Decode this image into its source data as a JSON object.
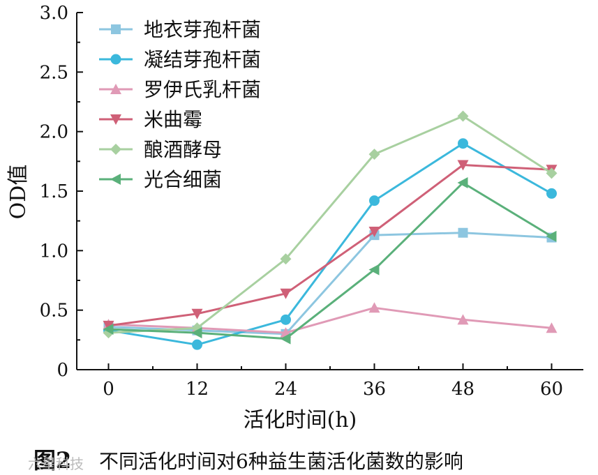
{
  "chart_data": {
    "type": "line",
    "xlabel": "活化时间(h)",
    "ylabel": "OD值",
    "x": [
      0,
      12,
      24,
      36,
      48,
      60
    ],
    "xlim": [
      -4.3,
      64.3
    ],
    "ylim": [
      0,
      3.0
    ],
    "yticks": [
      0,
      0.5,
      1.0,
      1.5,
      2.0,
      2.5,
      3.0
    ],
    "ytick_labels": [
      "0",
      "0.5",
      "1.0",
      "1.5",
      "2.0",
      "2.5",
      "3.0"
    ],
    "xtick_labels": [
      "0",
      "12",
      "24",
      "36",
      "48",
      "60"
    ],
    "legend_position": "top-left",
    "grid": false,
    "series": [
      {
        "name": "地衣芽孢杆菌",
        "color": "#8dc6e0",
        "marker": "square",
        "values": [
          0.36,
          0.33,
          0.3,
          1.13,
          1.15,
          1.11
        ]
      },
      {
        "name": "凝结芽孢杆菌",
        "color": "#3bb8dc",
        "marker": "circle",
        "values": [
          0.33,
          0.21,
          0.42,
          1.42,
          1.9,
          1.48
        ]
      },
      {
        "name": "罗伊氏乳杆菌",
        "color": "#e09ab6",
        "marker": "triangle-up",
        "values": [
          0.38,
          0.35,
          0.31,
          0.52,
          0.42,
          0.35
        ]
      },
      {
        "name": "米曲霉",
        "color": "#cf6077",
        "marker": "triangle-down",
        "values": [
          0.37,
          0.47,
          0.64,
          1.16,
          1.72,
          1.68
        ]
      },
      {
        "name": "酿酒酵母",
        "color": "#a8d0a0",
        "marker": "diamond",
        "values": [
          0.31,
          0.35,
          0.93,
          1.81,
          2.13,
          1.65
        ]
      },
      {
        "name": "光合细菌",
        "color": "#5ab07a",
        "marker": "triangle-left",
        "values": [
          0.34,
          0.31,
          0.26,
          0.84,
          1.57,
          1.12
        ]
      }
    ]
  },
  "caption": {
    "label": "图2",
    "text": "不同活化时间对6种益生菌活化菌数的影响"
  },
  "watermark": "六星科技"
}
